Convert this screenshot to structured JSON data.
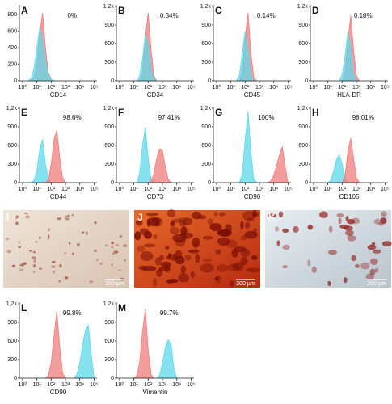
{
  "chart_data": [
    {
      "type": "area",
      "label": "A",
      "annotation": "0%",
      "xlabel": "CD14",
      "xscale": "log",
      "xlim": [
        0.6,
        160000
      ],
      "ylim": [
        0,
        900
      ],
      "yticks": [
        0,
        200,
        400,
        600,
        800
      ],
      "xticks": [
        {
          "value": 1,
          "label": "10⁰"
        },
        {
          "value": 10,
          "label": "10¹"
        },
        {
          "value": 100,
          "label": "10²"
        },
        {
          "value": 1000,
          "label": "10³"
        },
        {
          "value": 10000,
          "label": "10⁴"
        },
        {
          "value": 100000,
          "label": "10⁵"
        }
      ],
      "series": [
        {
          "color": "#f07c7c",
          "x": [
            4,
            6.3,
            10,
            16,
            25,
            40,
            63,
            100,
            160
          ],
          "values": [
            0,
            40,
            200,
            600,
            820,
            400,
            100,
            20,
            0
          ]
        },
        {
          "color": "#5fd8ea",
          "x": [
            2.5,
            4,
            6.3,
            10,
            16,
            25,
            40,
            63,
            100,
            160
          ],
          "values": [
            0,
            30,
            150,
            400,
            650,
            500,
            250,
            80,
            20,
            0
          ]
        }
      ]
    },
    {
      "type": "area",
      "label": "B",
      "annotation": "0.34%",
      "xlabel": "CD34",
      "xscale": "log",
      "xlim": [
        0.6,
        160000
      ],
      "ylim": [
        0,
        1200
      ],
      "yticks": [
        0,
        300,
        600,
        900,
        {
          "value": 1200,
          "label": "1,2k"
        }
      ],
      "xticks": [
        {
          "value": 1,
          "label": "10⁰"
        },
        {
          "value": 10,
          "label": "10¹"
        },
        {
          "value": 100,
          "label": "10²"
        },
        {
          "value": 1000,
          "label": "10³"
        },
        {
          "value": 10000,
          "label": "10⁴"
        },
        {
          "value": 100000,
          "label": "10⁵"
        }
      ],
      "series": [
        {
          "color": "#f07c7c",
          "x": [
            25,
            40,
            63,
            100,
            160,
            250,
            400
          ],
          "values": [
            0,
            150,
            700,
            1100,
            500,
            80,
            0
          ]
        },
        {
          "color": "#5fd8ea",
          "x": [
            16,
            25,
            40,
            63,
            100,
            160,
            250,
            400
          ],
          "values": [
            0,
            80,
            350,
            750,
            600,
            200,
            30,
            0
          ]
        }
      ]
    },
    {
      "type": "area",
      "label": "C",
      "annotation": "0.14%",
      "xlabel": "CD45",
      "xscale": "log",
      "xlim": [
        0.6,
        160000
      ],
      "ylim": [
        0,
        1200
      ],
      "yticks": [
        0,
        300,
        600,
        900,
        {
          "value": 1200,
          "label": "1,2k"
        }
      ],
      "xticks": [
        {
          "value": 1,
          "label": "10⁰"
        },
        {
          "value": 10,
          "label": "10¹"
        },
        {
          "value": 100,
          "label": "10²"
        },
        {
          "value": 1000,
          "label": "10³"
        },
        {
          "value": 10000,
          "label": "10⁴"
        },
        {
          "value": 100000,
          "label": "10⁵"
        }
      ],
      "series": [
        {
          "color": "#f07c7c",
          "x": [
            40,
            63,
            100,
            160,
            250,
            400,
            630
          ],
          "values": [
            0,
            150,
            700,
            1100,
            450,
            60,
            0
          ]
        },
        {
          "color": "#5fd8ea",
          "x": [
            25,
            40,
            63,
            100,
            160,
            250,
            400
          ],
          "values": [
            0,
            100,
            450,
            800,
            500,
            100,
            0
          ]
        }
      ]
    },
    {
      "type": "area",
      "label": "D",
      "annotation": "0.18%",
      "xlabel": "HLA-DR",
      "xscale": "log",
      "xlim": [
        0.6,
        160000
      ],
      "ylim": [
        0,
        1200
      ],
      "yticks": [
        0,
        300,
        600,
        900,
        {
          "value": 1200,
          "label": "1,2k"
        }
      ],
      "xticks": [
        {
          "value": 1,
          "label": "10⁰"
        },
        {
          "value": 10,
          "label": "10¹"
        },
        {
          "value": 100,
          "label": "10²"
        },
        {
          "value": 1000,
          "label": "10³"
        },
        {
          "value": 10000,
          "label": "10⁴"
        },
        {
          "value": 100000,
          "label": "10⁵"
        }
      ],
      "series": [
        {
          "color": "#f07c7c",
          "x": [
            100,
            160,
            250,
            400,
            630,
            1000,
            1600
          ],
          "values": [
            0,
            150,
            650,
            1050,
            500,
            80,
            0
          ]
        },
        {
          "color": "#5fd8ea",
          "x": [
            63,
            100,
            160,
            250,
            400,
            630,
            1000
          ],
          "values": [
            0,
            100,
            400,
            800,
            550,
            120,
            0
          ]
        }
      ]
    },
    {
      "type": "area",
      "label": "E",
      "annotation": "98.6%",
      "xlabel": "CD44",
      "xscale": "log",
      "xlim": [
        0.6,
        160000
      ],
      "ylim": [
        0,
        1200
      ],
      "yticks": [
        0,
        300,
        600,
        900,
        {
          "value": 1200,
          "label": "1,2k"
        }
      ],
      "xticks": [
        {
          "value": 1,
          "label": "10⁰"
        },
        {
          "value": 10,
          "label": "10¹"
        },
        {
          "value": 100,
          "label": "10²"
        },
        {
          "value": 1000,
          "label": "10³"
        },
        {
          "value": 10000,
          "label": "10⁴"
        },
        {
          "value": 100000,
          "label": "10⁵"
        }
      ],
      "series": [
        {
          "color": "#5fd8ea",
          "x": [
            4,
            6.3,
            10,
            16,
            25,
            40,
            63,
            100
          ],
          "values": [
            0,
            40,
            200,
            550,
            700,
            300,
            60,
            0
          ]
        },
        {
          "color": "#f07c7c",
          "x": [
            40,
            63,
            100,
            160,
            250,
            400,
            630,
            1000
          ],
          "values": [
            0,
            50,
            300,
            700,
            850,
            400,
            80,
            0
          ]
        }
      ]
    },
    {
      "type": "area",
      "label": "F",
      "annotation": "97.41%",
      "xlabel": "CD73",
      "xscale": "log",
      "xlim": [
        0.6,
        160000
      ],
      "ylim": [
        0,
        1200
      ],
      "yticks": [
        0,
        300,
        600,
        900,
        {
          "value": 1200,
          "label": "1,2k"
        }
      ],
      "xticks": [
        {
          "value": 1,
          "label": "10⁰"
        },
        {
          "value": 10,
          "label": "10¹"
        },
        {
          "value": 100,
          "label": "10²"
        },
        {
          "value": 1000,
          "label": "10³"
        },
        {
          "value": 10000,
          "label": "10⁴"
        },
        {
          "value": 100000,
          "label": "10⁵"
        }
      ],
      "series": [
        {
          "color": "#5fd8ea",
          "x": [
            16,
            25,
            40,
            63,
            100,
            160,
            250
          ],
          "values": [
            0,
            150,
            600,
            900,
            400,
            60,
            0
          ]
        },
        {
          "color": "#f07c7c",
          "x": [
            100,
            160,
            250,
            400,
            630,
            1000,
            1600,
            2500,
            4000
          ],
          "values": [
            0,
            30,
            150,
            400,
            550,
            520,
            250,
            60,
            0
          ]
        }
      ]
    },
    {
      "type": "area",
      "label": "G",
      "annotation": "100%",
      "xlabel": "CD90",
      "xscale": "log",
      "xlim": [
        0.6,
        160000
      ],
      "ylim": [
        0,
        1200
      ],
      "yticks": [
        0,
        300,
        600,
        900,
        {
          "value": 1200,
          "label": "1,2k"
        }
      ],
      "xticks": [
        {
          "value": 1,
          "label": "10⁰"
        },
        {
          "value": 10,
          "label": "10¹"
        },
        {
          "value": 100,
          "label": "10²"
        },
        {
          "value": 1000,
          "label": "10³"
        },
        {
          "value": 10000,
          "label": "10⁴"
        },
        {
          "value": 100000,
          "label": "10⁵"
        }
      ],
      "series": [
        {
          "color": "#5fd8ea",
          "x": [
            40,
            63,
            100,
            160,
            250,
            400,
            630
          ],
          "values": [
            0,
            150,
            700,
            1150,
            500,
            60,
            0
          ]
        },
        {
          "color": "#f07c7c",
          "x": [
            4000,
            6300,
            10000,
            16000,
            25000,
            40000,
            63000,
            100000
          ],
          "values": [
            0,
            30,
            120,
            280,
            450,
            580,
            250,
            0
          ]
        }
      ]
    },
    {
      "type": "area",
      "label": "H",
      "annotation": "98.01%",
      "xlabel": "CD105",
      "xscale": "log",
      "xlim": [
        0.6,
        160000
      ],
      "ylim": [
        0,
        1200
      ],
      "yticks": [
        0,
        300,
        600,
        900,
        {
          "value": 1200,
          "label": "1,2k"
        }
      ],
      "xticks": [
        {
          "value": 1,
          "label": "10⁰"
        },
        {
          "value": 10,
          "label": "10¹"
        },
        {
          "value": 100,
          "label": "10²"
        },
        {
          "value": 1000,
          "label": "10³"
        },
        {
          "value": 10000,
          "label": "10⁴"
        },
        {
          "value": 100000,
          "label": "10⁵"
        }
      ],
      "series": [
        {
          "color": "#5fd8ea",
          "x": [
            10,
            16,
            25,
            40,
            63,
            100,
            160,
            250
          ],
          "values": [
            0,
            40,
            180,
            380,
            450,
            300,
            80,
            0
          ]
        },
        {
          "color": "#f07c7c",
          "x": [
            100,
            160,
            250,
            400,
            630,
            1000,
            1600
          ],
          "values": [
            0,
            120,
            500,
            720,
            400,
            80,
            0
          ]
        }
      ]
    },
    {
      "type": "area",
      "label": "L",
      "annotation": "99.8%",
      "xlabel": "CD90",
      "xscale": "log",
      "xlim": [
        0.6,
        160000
      ],
      "ylim": [
        0,
        1200
      ],
      "yticks": [
        0,
        300,
        600,
        900,
        {
          "value": 1200,
          "label": "1,2k"
        }
      ],
      "xticks": [
        {
          "value": 1,
          "label": "10⁰"
        },
        {
          "value": 10,
          "label": "10¹"
        },
        {
          "value": 100,
          "label": "10²"
        },
        {
          "value": 1000,
          "label": "10³"
        },
        {
          "value": 10000,
          "label": "10⁴"
        },
        {
          "value": 100000,
          "label": "10⁵"
        }
      ],
      "series": [
        {
          "color": "#f07c7c",
          "x": [
            40,
            63,
            100,
            160,
            250,
            400,
            630,
            1000
          ],
          "values": [
            0,
            40,
            250,
            700,
            1080,
            500,
            80,
            0
          ]
        },
        {
          "color": "#5fd8ea",
          "x": [
            4000,
            6300,
            10000,
            16000,
            25000,
            40000,
            63000,
            100000
          ],
          "values": [
            0,
            60,
            250,
            550,
            780,
            850,
            400,
            0
          ]
        }
      ]
    },
    {
      "type": "area",
      "label": "M",
      "annotation": "99.7%",
      "xlabel": "Vimentin",
      "xscale": "log",
      "xlim": [
        0.6,
        160000
      ],
      "ylim": [
        0,
        1200
      ],
      "yticks": [
        0,
        300,
        600,
        900,
        {
          "value": 1200,
          "label": "1,2k"
        }
      ],
      "xticks": [
        {
          "value": 1,
          "label": "10⁰"
        },
        {
          "value": 10,
          "label": "10¹"
        },
        {
          "value": 100,
          "label": "10²"
        },
        {
          "value": 1000,
          "label": "10³"
        },
        {
          "value": 10000,
          "label": "10⁴"
        },
        {
          "value": 100000,
          "label": "10⁵"
        }
      ],
      "series": [
        {
          "color": "#f07c7c",
          "x": [
            10,
            16,
            25,
            40,
            63,
            100,
            160,
            250
          ],
          "values": [
            0,
            40,
            250,
            750,
            1120,
            450,
            60,
            0
          ]
        },
        {
          "color": "#5fd8ea",
          "x": [
            400,
            630,
            1000,
            1600,
            2500,
            4000,
            6300,
            10000
          ],
          "values": [
            0,
            50,
            250,
            500,
            620,
            550,
            150,
            0
          ]
        }
      ]
    }
  ],
  "images": [
    {
      "label": "I",
      "scale_bar": "200 µm"
    },
    {
      "label": "J",
      "scale_bar": "200 µm"
    },
    {
      "label": "K",
      "scale_bar": "200 µm"
    }
  ]
}
